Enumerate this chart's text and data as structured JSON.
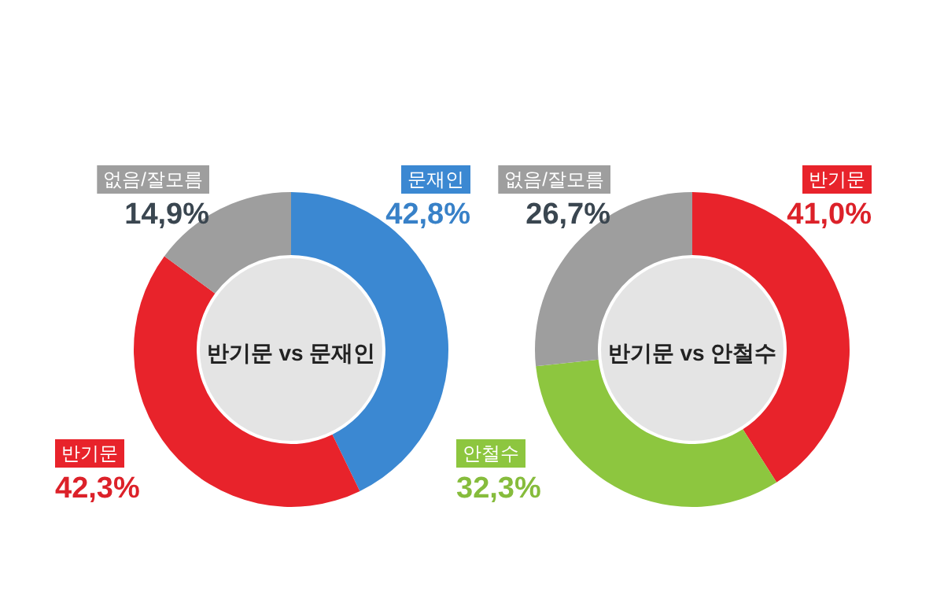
{
  "chart_data": [
    {
      "type": "donut",
      "title": "반기문 vs 문재인",
      "categories": [
        "문재인",
        "반기문",
        "없음/잘모름"
      ],
      "values": [
        42.8,
        42.3,
        14.9
      ],
      "colors": [
        "#3b88d2",
        "#e8232b",
        "#9e9e9e"
      ],
      "value_labels": [
        "42,8%",
        "42,3%",
        "14,9%"
      ]
    },
    {
      "type": "donut",
      "title": "반기문 vs 안철수",
      "categories": [
        "반기문",
        "안철수",
        "없음/잘모름"
      ],
      "values": [
        41.0,
        32.3,
        26.7
      ],
      "colors": [
        "#e8232b",
        "#8dc63f",
        "#9e9e9e"
      ],
      "value_labels": [
        "41,0%",
        "32,3%",
        "26,7%"
      ]
    }
  ]
}
